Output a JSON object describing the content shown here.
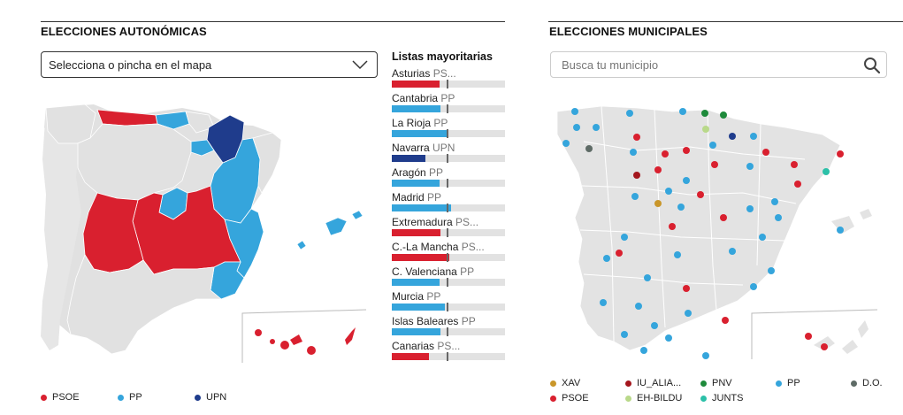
{
  "autonomicas": {
    "title": "ELECCIONES AUTONÓMICAS",
    "select_label": "Selecciona o pincha en el mapa",
    "lists_title": "Listas mayoritarias",
    "rows": [
      {
        "region": "Asturias",
        "party": "PS...",
        "color": "#d9202f",
        "fill": 0.42
      },
      {
        "region": "Cantabria",
        "party": "PP",
        "color": "#35a5dc",
        "fill": 0.43
      },
      {
        "region": "La Rioja",
        "party": "PP",
        "color": "#35a5dc",
        "fill": 0.5
      },
      {
        "region": "Navarra",
        "party": "UPN",
        "color": "#1f3c8c",
        "fill": 0.3
      },
      {
        "region": "Aragón",
        "party": "PP",
        "color": "#35a5dc",
        "fill": 0.42
      },
      {
        "region": "Madrid",
        "party": "PP",
        "color": "#35a5dc",
        "fill": 0.52
      },
      {
        "region": "Extremadura",
        "party": "PS...",
        "color": "#d9202f",
        "fill": 0.43
      },
      {
        "region": "C.-La Mancha",
        "party": "PS...",
        "color": "#d9202f",
        "fill": 0.51
      },
      {
        "region": "C. Valenciana",
        "party": "PP",
        "color": "#35a5dc",
        "fill": 0.42
      },
      {
        "region": "Murcia",
        "party": "PP",
        "color": "#35a5dc",
        "fill": 0.47
      },
      {
        "region": "Islas Baleares",
        "party": "PP",
        "color": "#35a5dc",
        "fill": 0.43
      },
      {
        "region": "Canarias",
        "party": "PS...",
        "color": "#d9202f",
        "fill": 0.33
      }
    ],
    "legend": [
      {
        "label": "PSOE",
        "color": "#d9202f"
      },
      {
        "label": "PP",
        "color": "#35a5dc"
      },
      {
        "label": "UPN",
        "color": "#1f3c8c"
      }
    ]
  },
  "municipales": {
    "title": "ELECCIONES MUNICIPALES",
    "search_placeholder": "Busca tu municipio",
    "legend": [
      {
        "label": "XAV",
        "color": "#c9962a"
      },
      {
        "label": "IU_ALIA...",
        "color": "#a4161d"
      },
      {
        "label": "PNV",
        "color": "#1e8a3b"
      },
      {
        "label": "PP",
        "color": "#35a5dc"
      },
      {
        "label": "D.O.",
        "color": "#5e6b66"
      },
      {
        "label": "PSOE",
        "color": "#d9202f"
      },
      {
        "label": "EH-BILDU",
        "color": "#b9d98a"
      },
      {
        "label": "JUNTS",
        "color": "#2cc0a8"
      }
    ]
  },
  "icons": {
    "select_arrow": "chevron-down-icon",
    "search": "search-icon"
  }
}
